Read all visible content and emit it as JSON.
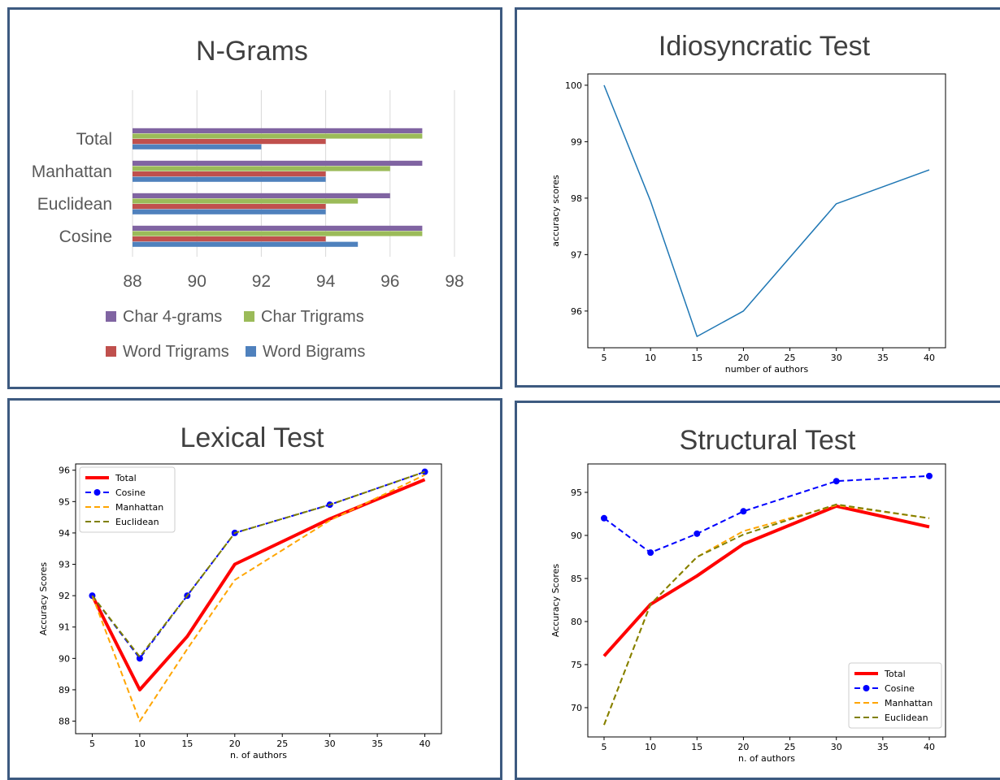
{
  "chart_data": [
    {
      "type": "bar",
      "orientation": "horizontal",
      "title": "N-Grams",
      "categories": [
        "Total",
        "Manhattan",
        "Euclidean",
        "Cosine"
      ],
      "xlim": [
        88,
        98
      ],
      "xticks": [
        "88",
        "90",
        "92",
        "94",
        "96",
        "98"
      ],
      "grid": true,
      "legend_position": "bottom",
      "series": [
        {
          "name": "Char 4-grams",
          "color": "#8064a2",
          "values": [
            97,
            97,
            96,
            97
          ]
        },
        {
          "name": "Char Trigrams",
          "color": "#9bbb59",
          "values": [
            97,
            96,
            95,
            97
          ]
        },
        {
          "name": "Word Trigrams",
          "color": "#c0504d",
          "values": [
            94,
            94,
            94,
            94
          ]
        },
        {
          "name": "Word Bigrams",
          "color": "#4f81bd",
          "values": [
            92,
            94,
            94,
            95
          ]
        }
      ]
    },
    {
      "type": "line",
      "title": "Idiosyncratic Test",
      "xlabel": "number of authors",
      "ylabel": "accuracy scores",
      "xlim": [
        3.25,
        41.75
      ],
      "ylim": [
        95.35,
        100.2
      ],
      "xticks": [
        "5",
        "10",
        "15",
        "20",
        "25",
        "30",
        "35",
        "40"
      ],
      "yticks": [
        "96",
        "97",
        "98",
        "99",
        "100"
      ],
      "series": [
        {
          "color": "#1f77b4",
          "x": [
            5,
            10,
            15,
            20,
            30,
            40
          ],
          "y": [
            100,
            97.95,
            95.55,
            96.0,
            97.9,
            98.5
          ]
        }
      ]
    },
    {
      "type": "line",
      "title": "Lexical Test",
      "xlabel": "n. of authors",
      "ylabel": "Accuracy Scores",
      "xlim": [
        3.25,
        41.75
      ],
      "ylim": [
        87.6,
        96.2
      ],
      "xticks": [
        "5",
        "10",
        "15",
        "20",
        "25",
        "30",
        "35",
        "40"
      ],
      "yticks": [
        "88",
        "89",
        "90",
        "91",
        "92",
        "93",
        "94",
        "95",
        "96"
      ],
      "legend_position": "top-left",
      "series": [
        {
          "name": "Total",
          "color": "#ff0000",
          "style": "solid-thick",
          "x": [
            5,
            10,
            15,
            20,
            30,
            40
          ],
          "y": [
            92,
            89,
            90.7,
            93,
            94.45,
            95.7
          ]
        },
        {
          "name": "Cosine",
          "color": "#0000ff",
          "style": "dashed-markers",
          "x": [
            5,
            10,
            15,
            20,
            30,
            40
          ],
          "y": [
            92,
            90,
            92,
            94,
            94.9,
            95.95
          ]
        },
        {
          "name": "Manhattan",
          "color": "#ffa500",
          "style": "dashed",
          "x": [
            5,
            10,
            15,
            20,
            30,
            40
          ],
          "y": [
            92,
            88,
            90.3,
            92.5,
            94.4,
            95.85
          ]
        },
        {
          "name": "Euclidean",
          "color": "#808000",
          "style": "dashed",
          "x": [
            5,
            10,
            15,
            20,
            30,
            40
          ],
          "y": [
            92,
            90.05,
            92,
            94,
            94.9,
            95.95
          ]
        }
      ]
    },
    {
      "type": "line",
      "title": "Structural Test",
      "xlabel": "n. of authors",
      "ylabel": "Accuracy Scores",
      "xlim": [
        3.25,
        41.75
      ],
      "ylim": [
        66.6,
        98.3
      ],
      "xticks": [
        "5",
        "10",
        "15",
        "20",
        "25",
        "30",
        "35",
        "40"
      ],
      "yticks": [
        "70",
        "75",
        "80",
        "85",
        "90",
        "95"
      ],
      "legend_position": "bottom-right",
      "series": [
        {
          "name": "Total",
          "color": "#ff0000",
          "style": "solid-thick",
          "x": [
            5,
            10,
            15,
            20,
            30,
            40
          ],
          "y": [
            76,
            82,
            85.3,
            89,
            93.4,
            91
          ]
        },
        {
          "name": "Cosine",
          "color": "#0000ff",
          "style": "dashed-markers",
          "x": [
            5,
            10,
            15,
            20,
            30,
            40
          ],
          "y": [
            92,
            88,
            90.2,
            92.8,
            96.3,
            96.9
          ]
        },
        {
          "name": "Manhattan",
          "color": "#ffa500",
          "style": "dashed",
          "x": [
            5,
            10,
            15,
            20,
            30,
            40
          ],
          "y": [
            68,
            82,
            87.5,
            90.5,
            93.5,
            92
          ]
        },
        {
          "name": "Euclidean",
          "color": "#808000",
          "style": "dashed",
          "x": [
            5,
            10,
            15,
            20,
            30,
            40
          ],
          "y": [
            68,
            82,
            87.5,
            90.1,
            93.6,
            92
          ]
        }
      ]
    }
  ]
}
